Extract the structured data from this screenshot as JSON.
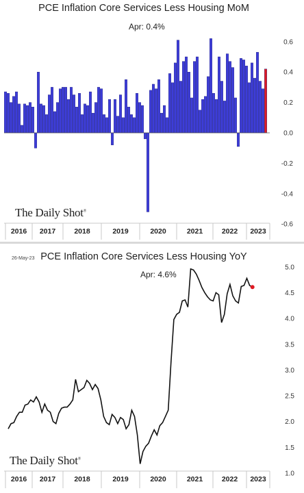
{
  "chart_data": [
    {
      "type": "bar",
      "title": "PCE Inflation Core Services Less Housing MoM",
      "annotation": "Apr:   0.4%",
      "brand": "The Daily Shot",
      "ylim": [
        -0.6,
        0.6
      ],
      "yticks": [
        "0.6",
        "0.4",
        "0.2",
        "0.0",
        "-0.2",
        "-0.4",
        "-0.6"
      ],
      "ytick_values": [
        0.6,
        0.4,
        0.2,
        0.0,
        -0.2,
        -0.4,
        -0.6
      ],
      "x_labels": [
        "2016",
        "2017",
        "2018",
        "2019",
        "2020",
        "2021",
        "2022",
        "2023"
      ],
      "grid": false,
      "colors": {
        "bars": "#3d3dd9",
        "highlight": "#e01b24"
      },
      "x_start": "2016-01",
      "values": [
        0.27,
        0.26,
        0.2,
        0.24,
        0.27,
        0.19,
        0.05,
        0.19,
        0.18,
        0.2,
        0.17,
        -0.1,
        0.4,
        0.19,
        0.18,
        0.12,
        0.25,
        0.3,
        0.14,
        0.2,
        0.29,
        0.3,
        0.3,
        0.22,
        0.3,
        0.25,
        0.17,
        0.26,
        0.12,
        0.19,
        0.18,
        0.27,
        0.13,
        0.2,
        0.3,
        0.29,
        0.12,
        0.1,
        0.22,
        -0.08,
        0.22,
        0.11,
        0.25,
        0.1,
        0.35,
        0.17,
        0.12,
        0.1,
        0.26,
        0.2,
        0.18,
        -0.04,
        -0.52,
        0.28,
        0.32,
        0.29,
        0.35,
        0.13,
        0.18,
        0.1,
        0.39,
        0.33,
        0.46,
        0.61,
        0.34,
        0.47,
        0.5,
        0.4,
        0.23,
        0.47,
        0.5,
        0.15,
        0.22,
        0.24,
        0.37,
        0.62,
        0.26,
        0.22,
        0.5,
        0.34,
        0.21,
        0.52,
        0.47,
        0.43,
        0.23,
        -0.09,
        0.49,
        0.48,
        0.44,
        0.33,
        0.46,
        0.36,
        0.53,
        0.34,
        0.29,
        0.42
      ]
    },
    {
      "type": "line",
      "title": "PCE Inflation Core Services Less Housing YoY",
      "date_stamp": "26-May-23",
      "annotation": "Apr:   4.6%",
      "brand": "The Daily Shot",
      "ylim": [
        1.0,
        5.0
      ],
      "yticks": [
        "5.0",
        "4.5",
        "4.0",
        "3.5",
        "3.0",
        "2.5",
        "2.0",
        "1.5",
        "1.0"
      ],
      "ytick_values": [
        5.0,
        4.5,
        4.0,
        3.5,
        3.0,
        2.5,
        2.0,
        1.5,
        1.0
      ],
      "x_labels": [
        "2016",
        "2017",
        "2018",
        "2019",
        "2020",
        "2021",
        "2022",
        "2023"
      ],
      "grid": false,
      "colors": {
        "line": "#111111",
        "endpoint": "#e01b24"
      },
      "x_start": "2016-01",
      "values": [
        1.86,
        1.96,
        1.98,
        2.1,
        2.18,
        2.18,
        2.32,
        2.34,
        2.42,
        2.38,
        2.48,
        2.38,
        2.18,
        2.34,
        2.22,
        2.18,
        2.0,
        1.96,
        2.16,
        2.26,
        2.28,
        2.28,
        2.34,
        2.42,
        2.82,
        2.58,
        2.62,
        2.66,
        2.8,
        2.74,
        2.62,
        2.72,
        2.64,
        2.42,
        2.1,
        1.98,
        1.94,
        2.14,
        2.08,
        1.96,
        2.08,
        2.04,
        1.86,
        1.94,
        2.22,
        2.1,
        1.74,
        1.18,
        1.42,
        1.52,
        1.58,
        1.72,
        1.84,
        1.74,
        1.92,
        1.98,
        2.1,
        2.22,
        3.16,
        3.98,
        4.08,
        4.12,
        4.34,
        4.36,
        4.22,
        4.96,
        4.94,
        4.86,
        4.74,
        4.6,
        4.5,
        4.42,
        4.36,
        4.34,
        4.5,
        4.46,
        3.92,
        4.08,
        4.48,
        4.66,
        4.44,
        4.34,
        4.3,
        4.62,
        4.64,
        4.78,
        4.64,
        4.61
      ]
    }
  ]
}
